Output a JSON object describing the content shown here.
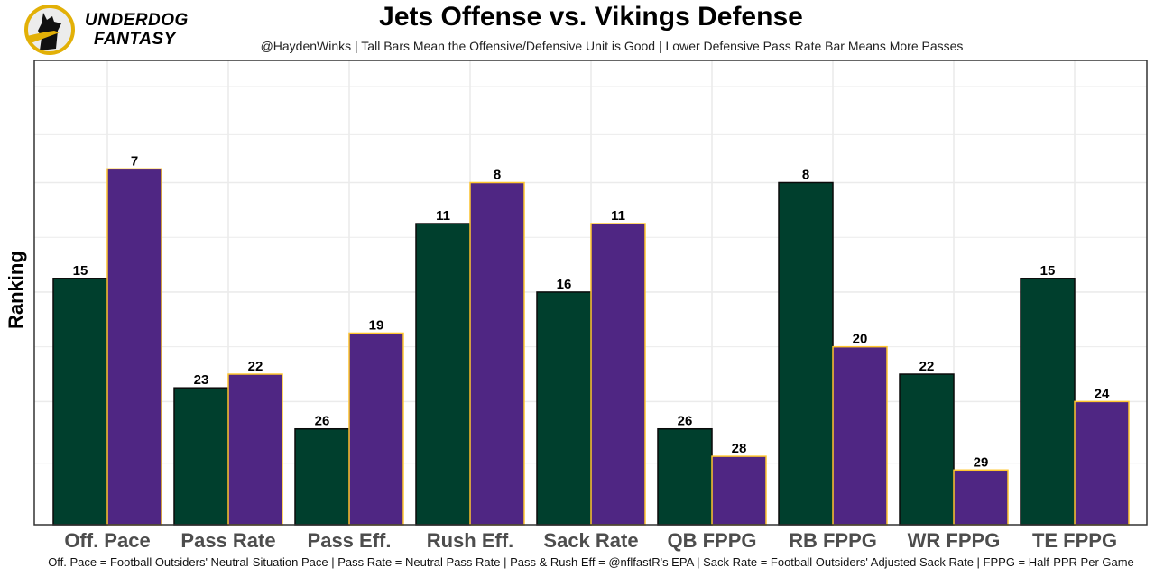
{
  "brand": {
    "line1": "UNDERDOG",
    "line2": "FANTASY",
    "logo_icon": "dog-silhouette-logo-icon"
  },
  "colors": {
    "offense_fill": "#003F2D",
    "offense_border": "#0a0a0a",
    "defense_fill": "#4F2683",
    "defense_border": "#FFC62F",
    "tick_label": "#4d4d4d",
    "grid": "#ebebeb"
  },
  "chart_data": {
    "type": "bar",
    "title": "Jets Offense vs. Vikings Defense",
    "subtitle": "@HaydenWinks | Tall Bars Mean the Offensive/Defensive Unit is Good | Lower Defensive Pass Rate Bar Means More Passes",
    "caption": "Off. Pace = Football Outsiders' Neutral-Situation Pace | Pass Rate = Neutral Pass Rate | Pass & Rush Eff = @nflfastR's EPA | Sack Rate = Football Outsiders' Adjusted Sack Rate | FPPG = Half-PPR Per Game",
    "xlabel": "",
    "ylabel": "Ranking",
    "categories": [
      "Off. Pace",
      "Pass Rate",
      "Pass Eff.",
      "Rush Eff.",
      "Sack Rate",
      "QB FPPG",
      "RB FPPG",
      "WR FPPG",
      "TE FPPG"
    ],
    "series": [
      {
        "name": "Jets Offense",
        "values": [
          15,
          23,
          26,
          11,
          16,
          26,
          8,
          22,
          15
        ]
      },
      {
        "name": "Vikings Defense",
        "values": [
          7,
          22,
          19,
          8,
          11,
          28,
          20,
          29,
          24
        ]
      }
    ],
    "y_axis": "rank (inverted: rank 1 = tallest bar)",
    "ylim": [
      33,
      0
    ],
    "grid": true,
    "legend": "none",
    "y_tick_labels_shown": false
  }
}
